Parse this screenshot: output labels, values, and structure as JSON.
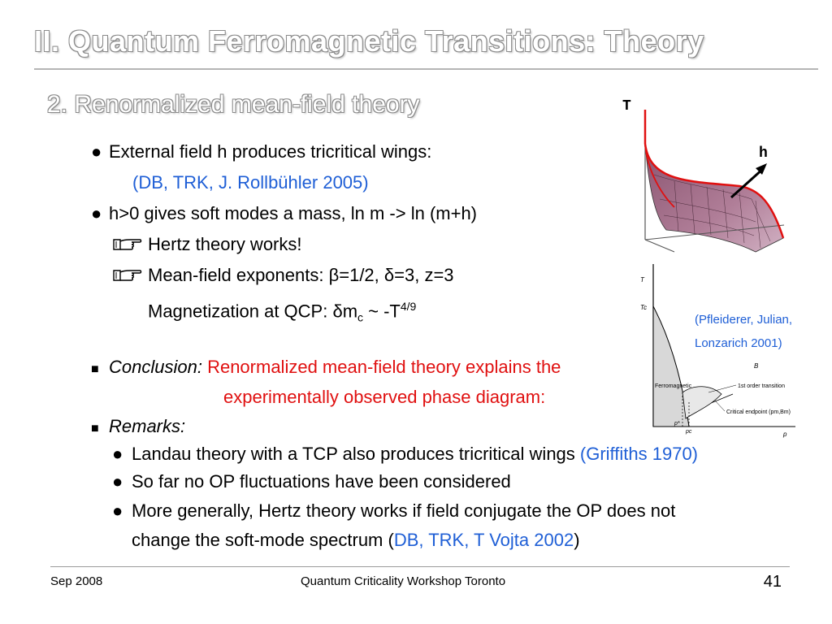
{
  "slide": {
    "title": "II. Quantum Ferromagnetic Transitions: Theory",
    "subtitle": "2. Renormalized mean-field theory"
  },
  "content": {
    "b1_text": "External field h produces tricritical wings:",
    "b1_ref": "(DB, TRK, J. Rollbühler 2005)",
    "b2_text": "h>0 gives soft modes a mass,  ln m -> ln (m+h)",
    "h1": "Hertz theory works!",
    "h2": "Mean-field exponents: β=1/2, δ=3, z=3",
    "mag_pre": "Magnetization at QCP: δm",
    "mag_sub": "c",
    "mag_mid": " ~ -T",
    "mag_sup": "4/9",
    "conclusion_label": "Conclusion:",
    "conclusion_text1": "Renormalized mean-field theory explains the",
    "conclusion_text2": "experimentally observed phase diagram:",
    "remarks_label": "Remarks:",
    "r1_text": "Landau theory with a TCP also produces tricritical wings ",
    "r1_ref": "(Griffiths 1970)",
    "r2_text": "So far no OP fluctuations have been considered",
    "r3_text": "More generally, Hertz theory works if field conjugate the OP does not",
    "r3_cont_pre": "change the soft-mode spectrum (",
    "r3_cont_ref": "DB, TRK, T Vojta 2002",
    "r3_cont_post": ")"
  },
  "figure_top": {
    "axis_T": "T",
    "axis_h": "h"
  },
  "figure_bottom": {
    "label_T": "T",
    "label_Tc": "Tc",
    "label_ferro": "Ferromagnetic",
    "label_first_order": "1st order transition",
    "label_B": "B",
    "label_endpoint": "Critical endpoint (pm,Bm)",
    "label_pstar": "p*",
    "label_pc": "pc",
    "label_p": "p"
  },
  "credit": {
    "line1": "(Pfleiderer, Julian,",
    "line2": "Lonzarich 2001)"
  },
  "footer": {
    "date": "Sep 2008",
    "event": "Quantum Criticality Workshop Toronto",
    "page": "41"
  },
  "colors": {
    "accent_blue": "#1f5fd6",
    "accent_red": "#e01010"
  }
}
